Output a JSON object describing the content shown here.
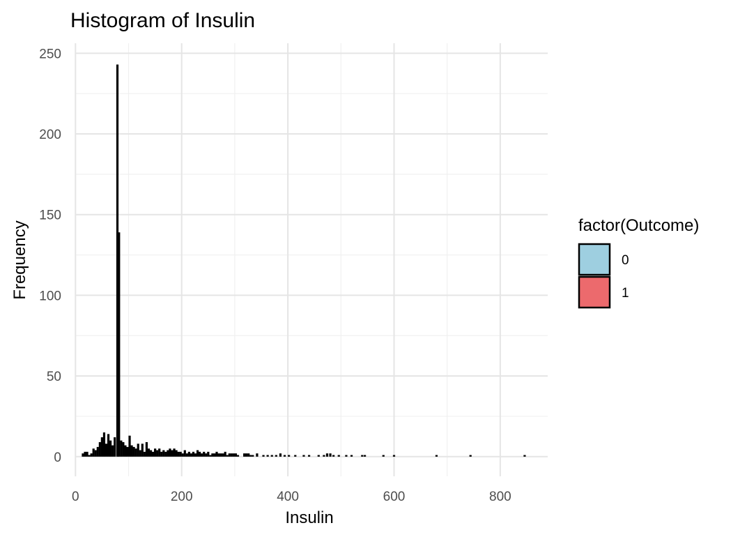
{
  "chart_data": {
    "type": "bar",
    "subtype": "histogram",
    "title": "Histogram of Insulin",
    "xlabel": "Insulin",
    "ylabel": "Frequency",
    "xlim": [
      -0.4,
      889.4
    ],
    "ylim": [
      -12.2,
      256.2
    ],
    "x_ticks": [
      0,
      200,
      400,
      600,
      800
    ],
    "y_ticks": [
      0,
      50,
      100,
      150,
      200,
      250
    ],
    "grid": true,
    "legend": {
      "title": "factor(Outcome)",
      "placement": "right",
      "entries": [
        {
          "label": "0",
          "color": "#9ecfe0"
        },
        {
          "label": "1",
          "color": "#ec6a6d"
        }
      ]
    },
    "bar_fill": "#000000",
    "bin_width": 4.2,
    "bins": [
      {
        "x": 14,
        "count": 2
      },
      {
        "x": 18,
        "count": 3
      },
      {
        "x": 22,
        "count": 3
      },
      {
        "x": 26,
        "count": 1
      },
      {
        "x": 30,
        "count": 2
      },
      {
        "x": 34,
        "count": 5
      },
      {
        "x": 38,
        "count": 4
      },
      {
        "x": 42,
        "count": 6
      },
      {
        "x": 46,
        "count": 9
      },
      {
        "x": 50,
        "count": 12
      },
      {
        "x": 54,
        "count": 15
      },
      {
        "x": 58,
        "count": 8
      },
      {
        "x": 62,
        "count": 14
      },
      {
        "x": 66,
        "count": 10
      },
      {
        "x": 70,
        "count": 7
      },
      {
        "x": 74,
        "count": 12
      },
      {
        "x": 79,
        "count": 243
      },
      {
        "x": 82,
        "count": 139
      },
      {
        "x": 86,
        "count": 10
      },
      {
        "x": 90,
        "count": 9
      },
      {
        "x": 94,
        "count": 7
      },
      {
        "x": 98,
        "count": 6
      },
      {
        "x": 102,
        "count": 13
      },
      {
        "x": 106,
        "count": 7
      },
      {
        "x": 110,
        "count": 6
      },
      {
        "x": 114,
        "count": 5
      },
      {
        "x": 118,
        "count": 8
      },
      {
        "x": 122,
        "count": 4
      },
      {
        "x": 126,
        "count": 8
      },
      {
        "x": 130,
        "count": 3
      },
      {
        "x": 134,
        "count": 9
      },
      {
        "x": 138,
        "count": 5
      },
      {
        "x": 142,
        "count": 4
      },
      {
        "x": 146,
        "count": 3
      },
      {
        "x": 150,
        "count": 5
      },
      {
        "x": 154,
        "count": 4
      },
      {
        "x": 158,
        "count": 5
      },
      {
        "x": 162,
        "count": 3
      },
      {
        "x": 166,
        "count": 4
      },
      {
        "x": 170,
        "count": 3
      },
      {
        "x": 174,
        "count": 4
      },
      {
        "x": 178,
        "count": 5
      },
      {
        "x": 182,
        "count": 4
      },
      {
        "x": 186,
        "count": 5
      },
      {
        "x": 190,
        "count": 4
      },
      {
        "x": 194,
        "count": 3
      },
      {
        "x": 198,
        "count": 3
      },
      {
        "x": 202,
        "count": 2
      },
      {
        "x": 206,
        "count": 4
      },
      {
        "x": 210,
        "count": 2
      },
      {
        "x": 214,
        "count": 3
      },
      {
        "x": 218,
        "count": 2
      },
      {
        "x": 222,
        "count": 3
      },
      {
        "x": 226,
        "count": 2
      },
      {
        "x": 230,
        "count": 4
      },
      {
        "x": 234,
        "count": 3
      },
      {
        "x": 238,
        "count": 2
      },
      {
        "x": 242,
        "count": 3
      },
      {
        "x": 246,
        "count": 2
      },
      {
        "x": 250,
        "count": 3
      },
      {
        "x": 254,
        "count": 1
      },
      {
        "x": 258,
        "count": 2
      },
      {
        "x": 262,
        "count": 2
      },
      {
        "x": 266,
        "count": 3
      },
      {
        "x": 270,
        "count": 2
      },
      {
        "x": 274,
        "count": 2
      },
      {
        "x": 278,
        "count": 2
      },
      {
        "x": 282,
        "count": 3
      },
      {
        "x": 286,
        "count": 1
      },
      {
        "x": 290,
        "count": 2
      },
      {
        "x": 294,
        "count": 2
      },
      {
        "x": 298,
        "count": 2
      },
      {
        "x": 302,
        "count": 2
      },
      {
        "x": 306,
        "count": 1
      },
      {
        "x": 318,
        "count": 2
      },
      {
        "x": 322,
        "count": 2
      },
      {
        "x": 326,
        "count": 2
      },
      {
        "x": 330,
        "count": 1
      },
      {
        "x": 334,
        "count": 1
      },
      {
        "x": 342,
        "count": 2
      },
      {
        "x": 354,
        "count": 1
      },
      {
        "x": 362,
        "count": 1
      },
      {
        "x": 370,
        "count": 1
      },
      {
        "x": 378,
        "count": 1
      },
      {
        "x": 386,
        "count": 2
      },
      {
        "x": 394,
        "count": 1
      },
      {
        "x": 402,
        "count": 1
      },
      {
        "x": 414,
        "count": 1
      },
      {
        "x": 430,
        "count": 1
      },
      {
        "x": 440,
        "count": 1
      },
      {
        "x": 458,
        "count": 1
      },
      {
        "x": 468,
        "count": 1
      },
      {
        "x": 474,
        "count": 2
      },
      {
        "x": 480,
        "count": 2
      },
      {
        "x": 486,
        "count": 1
      },
      {
        "x": 496,
        "count": 1
      },
      {
        "x": 510,
        "count": 1
      },
      {
        "x": 520,
        "count": 1
      },
      {
        "x": 540,
        "count": 1
      },
      {
        "x": 545,
        "count": 1
      },
      {
        "x": 580,
        "count": 1
      },
      {
        "x": 600,
        "count": 1
      },
      {
        "x": 680,
        "count": 1
      },
      {
        "x": 744,
        "count": 1
      },
      {
        "x": 846,
        "count": 1
      }
    ]
  }
}
